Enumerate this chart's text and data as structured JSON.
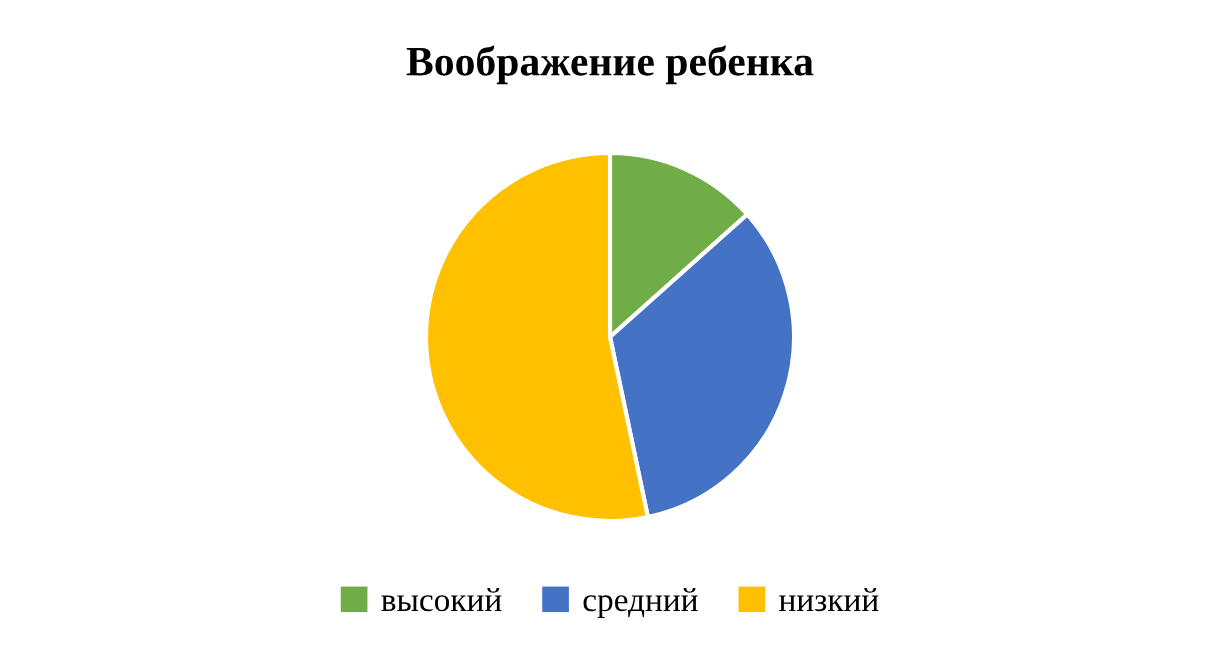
{
  "chart_data": {
    "type": "pie",
    "title": "Воображение ребенка",
    "categories": [
      "высокий",
      "средний",
      "низкий"
    ],
    "values": [
      13.4,
      33.3,
      53.3
    ],
    "colors": [
      "#70ad47",
      "#4472c4",
      "#ffc000"
    ],
    "legend": "bottom"
  }
}
